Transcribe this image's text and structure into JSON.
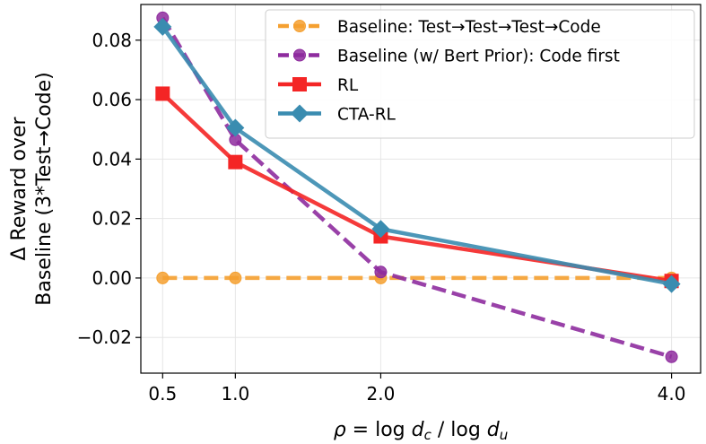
{
  "chart_data": {
    "type": "line",
    "title": "",
    "xlabel": "ρ = log d_c / log d_u",
    "ylabel_line1": "Δ Reward over",
    "ylabel_line2": "Baseline (3*Test→Code)",
    "x": [
      0.5,
      1.0,
      2.0,
      4.0
    ],
    "x_tick_labels": [
      "0.5",
      "1.0",
      "2.0",
      "4.0"
    ],
    "xlim": [
      0.35,
      4.2
    ],
    "ylim": [
      -0.032,
      0.092
    ],
    "y_ticks": [
      -0.02,
      0.0,
      0.02,
      0.04,
      0.06,
      0.08
    ],
    "y_tick_labels": [
      "−0.02",
      "0.00",
      "0.02",
      "0.04",
      "0.06",
      "0.08"
    ],
    "grid": true,
    "legend_position": "top-right",
    "series": [
      {
        "name": "Baseline: Test→Test→Test→Code",
        "values": [
          0.0,
          0.0,
          0.0,
          0.0
        ],
        "color": "#F5A030",
        "dash": "dashed",
        "marker": "circle"
      },
      {
        "name": "Baseline (w/ Bert Prior): Code first",
        "values": [
          0.0875,
          0.0465,
          0.002,
          -0.0265
        ],
        "color": "#8E2C9E",
        "dash": "dashed",
        "marker": "circle"
      },
      {
        "name": "RL",
        "values": [
          0.062,
          0.039,
          0.014,
          -0.001
        ],
        "color": "#F42525",
        "dash": "solid",
        "marker": "square"
      },
      {
        "name": "CTA-RL",
        "values": [
          0.0845,
          0.0505,
          0.0165,
          -0.002
        ],
        "color": "#3A8CB0",
        "dash": "solid",
        "marker": "diamond"
      }
    ]
  }
}
